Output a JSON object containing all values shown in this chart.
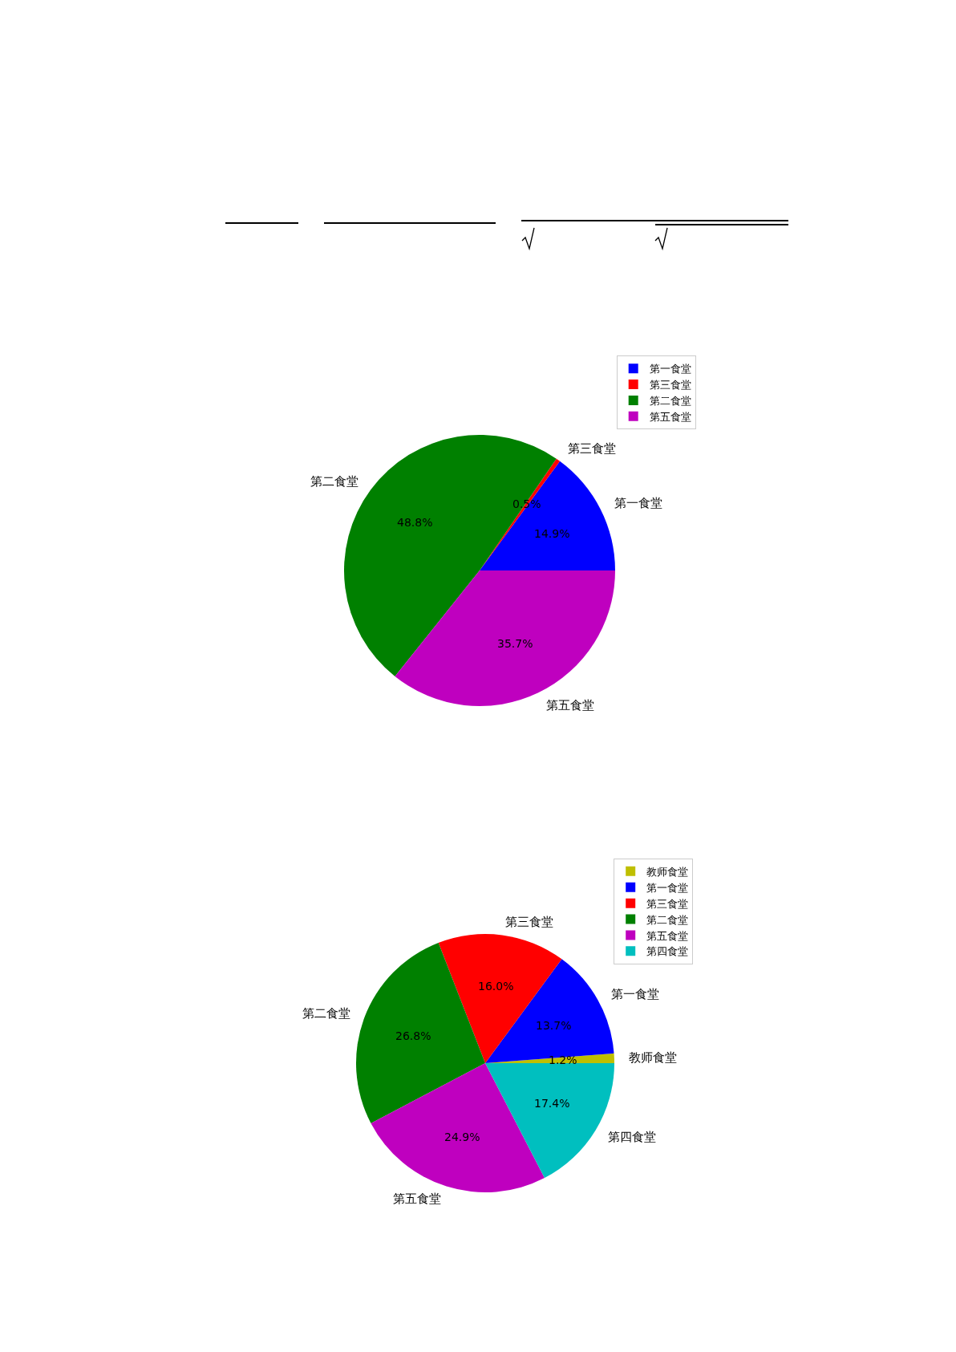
{
  "chart_data": [
    {
      "type": "pie",
      "categories": [
        "第一食堂",
        "第三食堂",
        "第二食堂",
        "第五食堂"
      ],
      "values": [
        14.9,
        0.5,
        48.8,
        35.7
      ],
      "value_labels": [
        "14.9%",
        "0.5%",
        "48.8%",
        "35.7%"
      ],
      "colors": [
        "#0000ff",
        "#ff0000",
        "#008000",
        "#bf00bf"
      ],
      "legend": "top right"
    },
    {
      "type": "pie",
      "categories": [
        "教师食堂",
        "第一食堂",
        "第三食堂",
        "第二食堂",
        "第五食堂",
        "第四食堂"
      ],
      "values": [
        1.2,
        13.7,
        16.0,
        26.8,
        24.9,
        17.4
      ],
      "value_labels": [
        "1.2%",
        "13.7%",
        "16.0%",
        "26.8%",
        "24.9%",
        "17.4%"
      ],
      "colors": [
        "#bfbf00",
        "#0000ff",
        "#ff0000",
        "#008000",
        "#bf00bf",
        "#00bfbf"
      ],
      "legend": "top right"
    }
  ]
}
